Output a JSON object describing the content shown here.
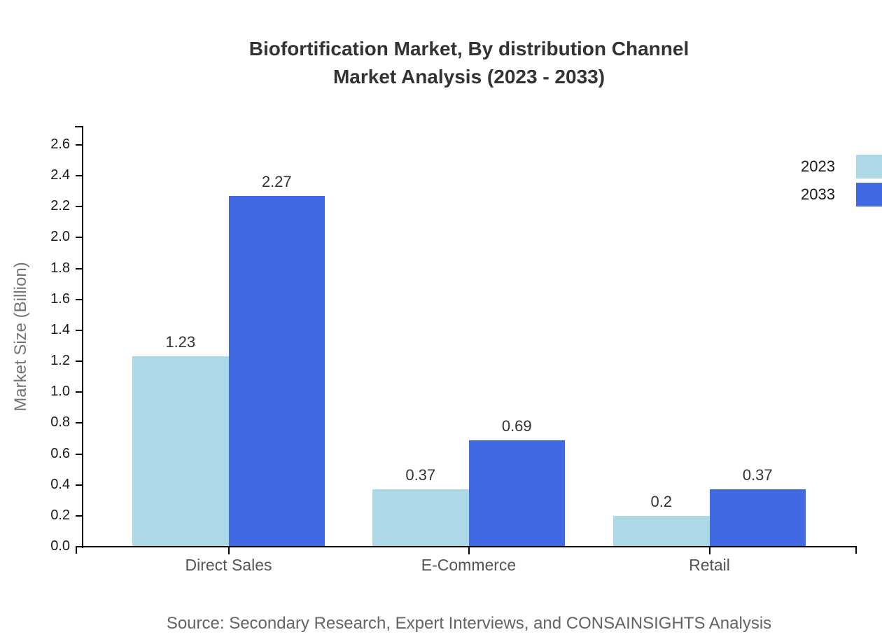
{
  "title": {
    "line1": "Biofortification Market, By distribution Channel",
    "line2": "Market Analysis (2023 - 2033)"
  },
  "source_text": "Source: Secondary Research, Expert Interviews, and CONSAINSIGHTS Analysis",
  "chart_data": {
    "type": "bar",
    "title": "Biofortification Market, By distribution Channel Market Analysis (2023 - 2033)",
    "categories": [
      "Direct Sales",
      "E-Commerce",
      "Retail"
    ],
    "series": [
      {
        "name": "2023",
        "color": "#ADD8E6",
        "values": [
          1.23,
          0.37,
          0.2
        ]
      },
      {
        "name": "2033",
        "color": "#4169E1",
        "values": [
          2.27,
          0.69,
          0.37
        ]
      }
    ],
    "xlabel": "",
    "ylabel": "Market Size (Billion)",
    "ylim": [
      0,
      2.72
    ],
    "yticks": [
      "0.0",
      "0.2",
      "0.4",
      "0.6",
      "0.8",
      "1.0",
      "1.2",
      "1.4",
      "1.6",
      "1.8",
      "2.0",
      "2.2",
      "2.4",
      "2.6"
    ],
    "grid": false,
    "bar_value_labels": true,
    "legend_position": "upper-right-outside"
  },
  "colors": {
    "background": "#ffffff",
    "axis": "#000000",
    "title_text": "#333333",
    "tick_label": "#1a1a1a",
    "category_label": "#555555",
    "axis_title": "#757575",
    "value_label": "#333333",
    "legend_label": "#1a1a1a",
    "source": "#646464"
  }
}
